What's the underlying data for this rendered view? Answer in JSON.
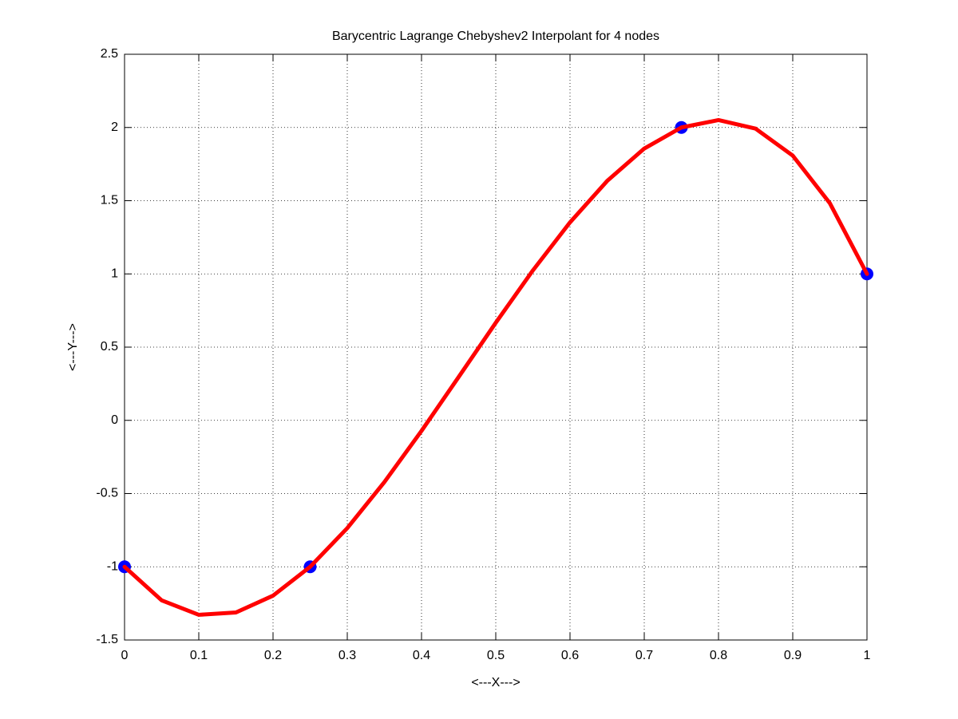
{
  "chart_data": {
    "type": "line",
    "title": "Barycentric Lagrange Chebyshev2 Interpolant for 4 nodes",
    "x_label": "<---X--->",
    "y_label": "<---Y--->",
    "xlim": [
      0,
      1
    ],
    "ylim": [
      -1.5,
      2.5
    ],
    "xticks": [
      0,
      0.1,
      0.2,
      0.3,
      0.4,
      0.5,
      0.6,
      0.7,
      0.8,
      0.9,
      1
    ],
    "yticks": [
      -1.5,
      -1,
      -0.5,
      0,
      0.5,
      1,
      1.5,
      2,
      2.5
    ],
    "grid": true,
    "series": [
      {
        "style": "marker",
        "color": "#0000ff",
        "x": [
          0,
          0.25,
          0.75,
          1
        ],
        "values": [
          -1,
          -1,
          2,
          1
        ]
      },
      {
        "style": "line",
        "color": "#ff0000",
        "x": [
          0,
          0.05,
          0.1,
          0.15,
          0.2,
          0.25,
          0.3,
          0.35,
          0.4,
          0.45,
          0.5,
          0.55,
          0.6,
          0.65,
          0.7,
          0.75,
          0.8,
          0.85,
          0.9,
          0.95,
          1
        ],
        "values": [
          -1,
          -1.2293,
          -1.328,
          -1.312,
          -1.1973,
          -1,
          -0.736,
          -0.4213,
          -0.072,
          0.296,
          0.6667,
          1.024,
          1.352,
          1.6347,
          1.856,
          2,
          2.0507,
          1.992,
          1.808,
          1.4827,
          1
        ]
      }
    ]
  }
}
